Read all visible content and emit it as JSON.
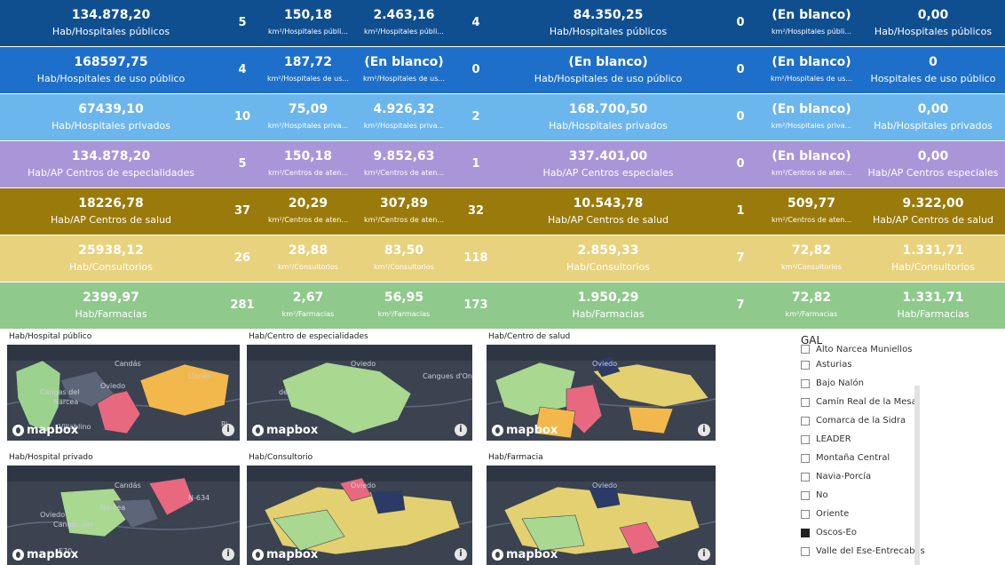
{
  "rows": [
    {
      "bg": "#104f8f",
      "fg": "#ffffff",
      "c1v": "134.878,20",
      "c1l": "Hab/Hospitales públicos",
      "c2": "5",
      "c3v": "150,18",
      "c3l": "km²/Hospitales públi...",
      "c4v": "2.463,16",
      "c4l": "km²/Hospitales públi...",
      "c5": "4",
      "c6v": "84.350,25",
      "c6l": "Hab/Hospitales públicos",
      "c7": "0",
      "c8v": "(En blanco)",
      "c8l": "km²/Hospitales públi...",
      "c9v": "0,00",
      "c9l": "Hab/Hospitales públicos"
    },
    {
      "bg": "#1d6fc9",
      "fg": "#ffffff",
      "c1v": "168597,75",
      "c1l": "Hab/Hospitales de uso público",
      "c2": "4",
      "c3v": "187,72",
      "c3l": "km²/Hospitales de us...",
      "c4v": "(En blanco)",
      "c4l": "km²/Hospitales de us...",
      "c5": "0",
      "c6v": "(En blanco)",
      "c6l": "Hab/Hospitales de uso público",
      "c7": "0",
      "c8v": "(En blanco)",
      "c8l": "km²/Hospitales de us...",
      "c9v": "0",
      "c9l": "Hospitales de uso público"
    },
    {
      "bg": "#6cb6ee",
      "fg": "#ffffff",
      "c1v": "67439,10",
      "c1l": "Hab/Hospitales privados",
      "c2": "10",
      "c3v": "75,09",
      "c3l": "km²/Hospitales priva...",
      "c4v": "4.926,32",
      "c4l": "km²/Hospitales priva...",
      "c5": "2",
      "c6v": "168.700,50",
      "c6l": "Hab/Hospitales privados",
      "c7": "0",
      "c8v": "(En blanco)",
      "c8l": "km²/Hospitales priva...",
      "c9v": "0,00",
      "c9l": "Hab/Hospitales privados"
    },
    {
      "bg": "#a896d9",
      "fg": "#ffffff",
      "c1v": "134.878,20",
      "c1l": "Hab/AP Centros de especialidades",
      "c2": "5",
      "c3v": "150,18",
      "c3l": "km²/Centros de aten...",
      "c4v": "9.852,63",
      "c4l": "km²/Centros de aten...",
      "c5": "1",
      "c6v": "337.401,00",
      "c6l": "Hab/AP Centros especiales",
      "c7": "0",
      "c8v": "(En blanco)",
      "c8l": "km²/Centros de aten...",
      "c9v": "0,00",
      "c9l": "Hab/AP Centros especiales"
    },
    {
      "bg": "#9a7a0a",
      "fg": "#ffffff",
      "c1v": "18226,78",
      "c1l": "Hab/AP Centros de salud",
      "c2": "37",
      "c3v": "20,29",
      "c3l": "km²/Centros de aten...",
      "c4v": "307,89",
      "c4l": "km²/Centros de aten...",
      "c5": "32",
      "c6v": "10.543,78",
      "c6l": "Hab/AP Centros de salud",
      "c7": "1",
      "c8v": "509,77",
      "c8l": "km²/Centros de aten...",
      "c9v": "9.322,00",
      "c9l": "Hab/AP Centros de salud"
    },
    {
      "bg": "#e8d27e",
      "fg": "#ffffff",
      "c1v": "25938,12",
      "c1l": "Hab/Consultorios",
      "c2": "26",
      "c3v": "28,88",
      "c3l": "km²/Consultorios",
      "c4v": "83,50",
      "c4l": "km²/Consultorios",
      "c5": "118",
      "c6v": "2.859,33",
      "c6l": "Hab/Consultorios",
      "c7": "7",
      "c8v": "72,82",
      "c8l": "km²/Consultorios",
      "c9v": "1.331,71",
      "c9l": "Hab/Consultorios"
    },
    {
      "bg": "#8fc98c",
      "fg": "#ffffff",
      "c1v": "2399,97",
      "c1l": "Hab/Farmacias",
      "c2": "281",
      "c3v": "2,67",
      "c3l": "km²/Farmacias",
      "c4v": "56,95",
      "c4l": "km²/Farmacias",
      "c5": "173",
      "c6v": "1.950,29",
      "c6l": "Hab/Farmacias",
      "c7": "7",
      "c8v": "72,82",
      "c8l": "km²/Farmacias",
      "c9v": "1.331,71",
      "c9l": "Hab/Farmacias"
    }
  ],
  "maps": [
    {
      "title": "Hab/Hospital público",
      "places": [
        "Candás",
        "Llanes",
        "Cangas del",
        "Narcea",
        "Oviedo",
        "Villablino",
        "Ri"
      ],
      "logo": "mapbox"
    },
    {
      "title": "Hab/Centro de especialidades",
      "places": [
        "Oviedo",
        "Cangues d'Onís",
        "del"
      ],
      "logo": "mapbox"
    },
    {
      "title": "Hab/Centro de salud",
      "places": [
        "Oviedo"
      ],
      "logo": "mapbox"
    },
    {
      "title": "Hab/Hospital privado",
      "places": [
        "Candás",
        "N-634",
        "Oviedo",
        "Cangas del",
        "Narcea",
        "E70"
      ],
      "logo": "mapbox"
    },
    {
      "title": "Hab/Consultorio",
      "places": [
        "Oviedo"
      ],
      "logo": "mapbox"
    },
    {
      "title": "Hab/Farmacia",
      "places": [
        "Oviedo"
      ],
      "logo": "mapbox"
    }
  ],
  "info_icon": "i",
  "slicer": {
    "title": "GAL",
    "items": [
      {
        "label": "Alto Narcea Muniellos",
        "checked": false
      },
      {
        "label": "Asturias",
        "checked": false
      },
      {
        "label": "Bajo Nalón",
        "checked": false
      },
      {
        "label": "Camín Real de la Mesa",
        "checked": false
      },
      {
        "label": "Comarca de la Sidra",
        "checked": false
      },
      {
        "label": "LEADER",
        "checked": false
      },
      {
        "label": "Montaña Central",
        "checked": false
      },
      {
        "label": "Navia-Porcía",
        "checked": false
      },
      {
        "label": "No",
        "checked": false
      },
      {
        "label": "Oriente",
        "checked": false
      },
      {
        "label": "Oscos-Eo",
        "checked": true
      },
      {
        "label": "Valle del Ese-Entrecabos",
        "checked": false
      }
    ]
  }
}
